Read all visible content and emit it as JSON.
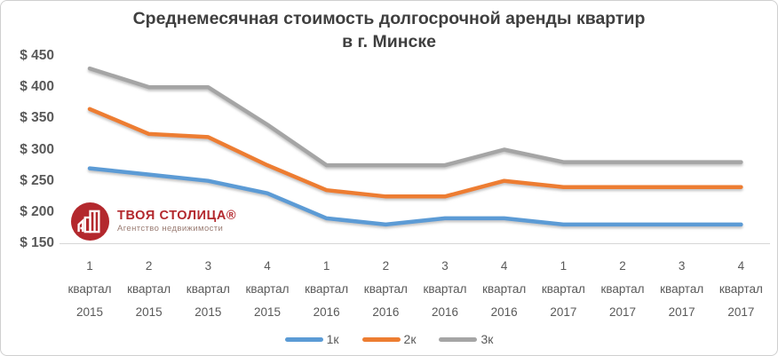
{
  "title": {
    "line1": "Среднемесячная стоимость долгосрочной аренды квартир",
    "line2": "в г. Минске"
  },
  "logo": {
    "name": "ТВОЯ СТОЛИЦА®",
    "subtitle": "Агентство недвижимости",
    "brand_red": "#b3282d",
    "icon": "buildings-icon"
  },
  "chart_data": {
    "type": "line",
    "title": "Среднемесячная стоимость долгосрочной аренды квартир в г. Минске",
    "grid": false,
    "legend_position": "bottom",
    "ylim": [
      150,
      450
    ],
    "y_axis": {
      "tick_labels": [
        "$ 450",
        "$ 400",
        "$ 350",
        "$ 300",
        "$ 250",
        "$ 200",
        "$ 150"
      ],
      "tick_values": [
        450,
        400,
        350,
        300,
        250,
        200,
        150
      ]
    },
    "x_axis": {
      "quarters": [
        "1",
        "2",
        "3",
        "4",
        "1",
        "2",
        "3",
        "4",
        "1",
        "2",
        "3",
        "4"
      ],
      "word": "квартал",
      "years": [
        "2015",
        "2015",
        "2015",
        "2015",
        "2016",
        "2016",
        "2016",
        "2016",
        "2017",
        "2017",
        "2017",
        "2017"
      ]
    },
    "series": [
      {
        "name": "1к",
        "color": "#5b9bd5",
        "values": [
          270,
          260,
          250,
          230,
          190,
          180,
          190,
          190,
          180,
          180,
          180,
          180
        ]
      },
      {
        "name": "2к",
        "color": "#ed7d31",
        "values": [
          365,
          325,
          320,
          275,
          235,
          225,
          225,
          250,
          240,
          240,
          240,
          240
        ]
      },
      {
        "name": "3к",
        "color": "#a5a5a5",
        "values": [
          430,
          400,
          400,
          340,
          275,
          275,
          275,
          300,
          280,
          280,
          280,
          280
        ]
      }
    ]
  }
}
